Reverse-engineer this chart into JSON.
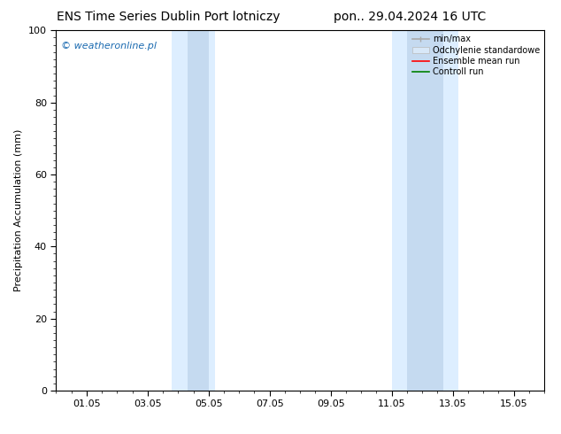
{
  "title_left": "ENS Time Series Dublin Port lotniczy",
  "title_right": "pon.. 29.04.2024 16 UTC",
  "ylabel": "Precipitation Accumulation (mm)",
  "watermark": "© weatheronline.pl",
  "watermark_color": "#1a6ab0",
  "ylim": [
    0,
    100
  ],
  "yticks": [
    0,
    20,
    40,
    60,
    80,
    100
  ],
  "xtick_labels": [
    "01.05",
    "03.05",
    "05.05",
    "07.05",
    "09.05",
    "11.05",
    "13.05",
    "15.05"
  ],
  "xtick_positions": [
    1,
    3,
    5,
    7,
    9,
    11,
    13,
    15
  ],
  "xmin": 0,
  "xmax": 16,
  "band1_x1": 3.8,
  "band1_x2": 5.2,
  "band2_x1": 11.0,
  "band2_x2": 13.2,
  "band_color": "#ddeeff",
  "std_band1_x1": 4.3,
  "std_band1_x2": 5.0,
  "std_band2_x1": 11.5,
  "std_band2_x2": 12.7,
  "std_color": "#c5daf0",
  "legend_labels": [
    "min/max",
    "Odchylenie standardowe",
    "Ensemble mean run",
    "Controll run"
  ],
  "legend_minmax_color": "#aaaaaa",
  "legend_std_color": "#cccccc",
  "legend_ensemble_color": "#ff0000",
  "legend_control_color": "#008000",
  "bg_color": "#ffffff",
  "title_fontsize": 10,
  "label_fontsize": 8,
  "tick_fontsize": 8,
  "watermark_fontsize": 8,
  "legend_fontsize": 7
}
